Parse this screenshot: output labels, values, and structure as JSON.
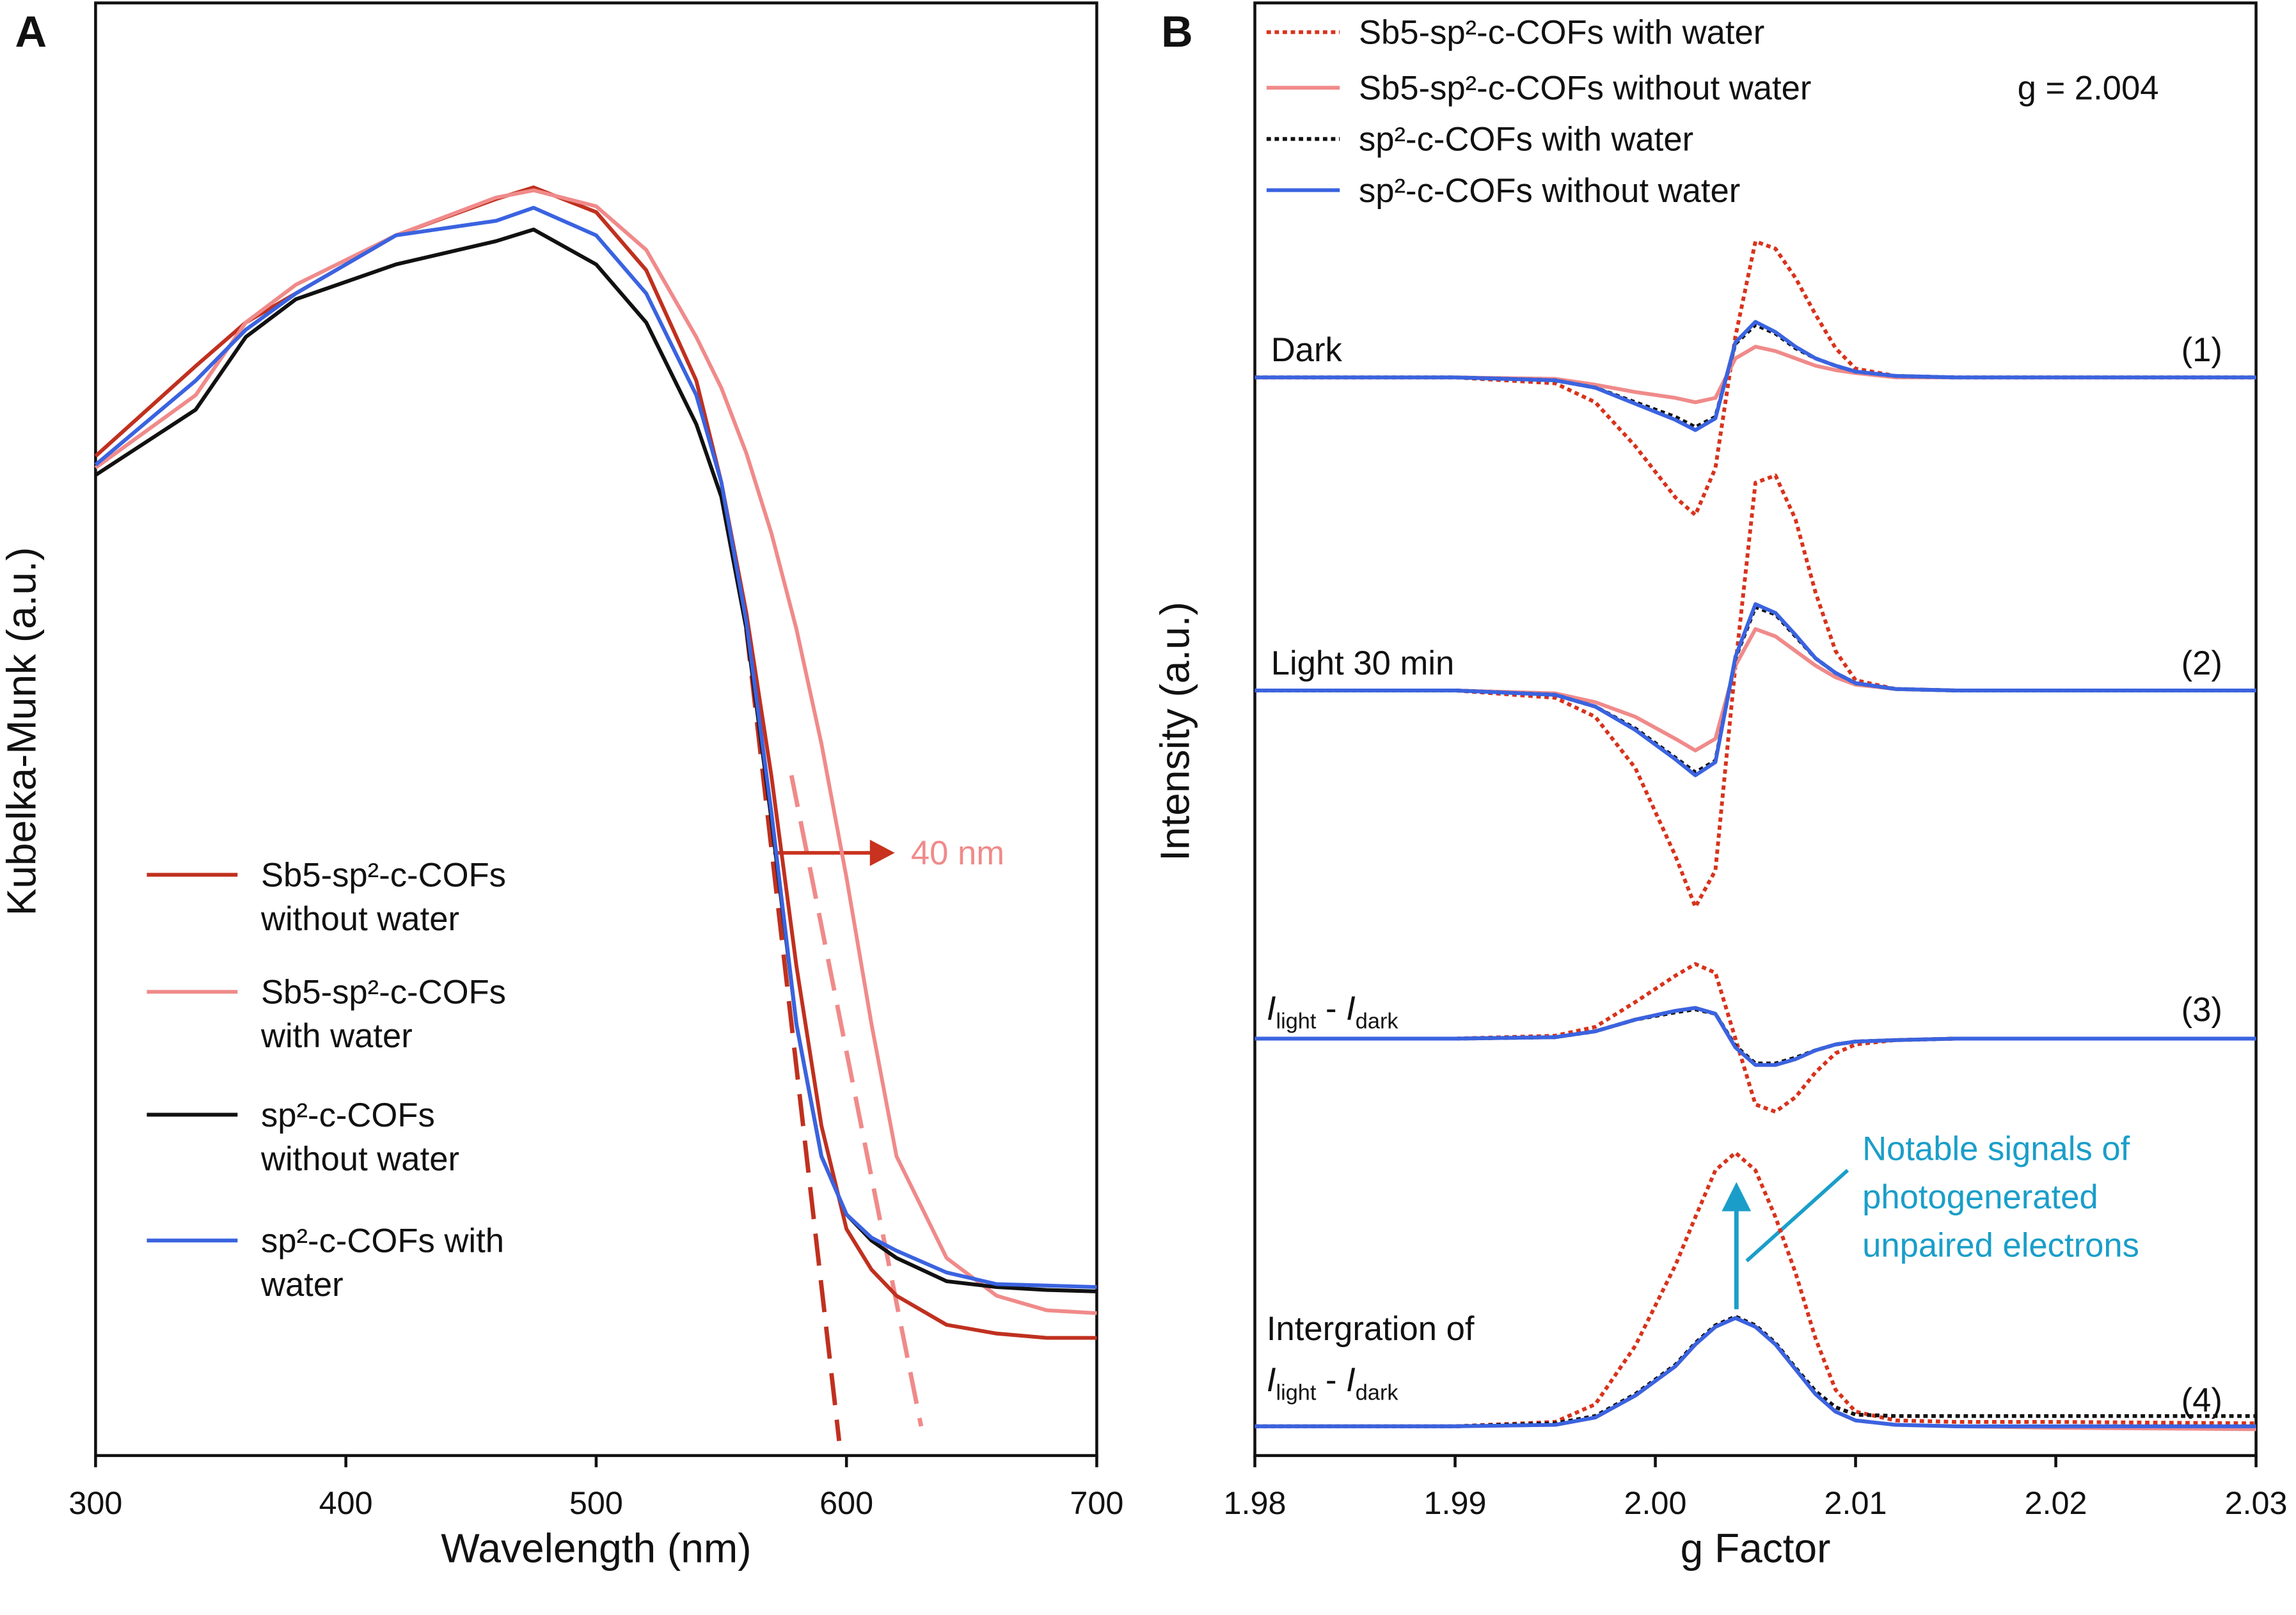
{
  "chart_data": [
    {
      "type": "line",
      "panel": "A",
      "xlabel": "Wavelength (nm)",
      "ylabel": "Kubelka-Munk (a.u.)",
      "xlim": [
        300,
        700
      ],
      "xticks": [
        300,
        400,
        500,
        600,
        700
      ],
      "ylim": [
        0,
        100
      ],
      "x": [
        300,
        340,
        360,
        380,
        420,
        460,
        475,
        500,
        520,
        540,
        550,
        560,
        570,
        580,
        590,
        600,
        610,
        620,
        640,
        660,
        680,
        700
      ],
      "series": [
        {
          "name": "Sb5-sp²-c-COFs without water",
          "color": "#c0301f",
          "values": [
            68.8,
            75,
            78,
            80,
            84,
            86.5,
            87.3,
            85.6,
            81.6,
            74,
            67,
            58,
            46.8,
            33.7,
            22.7,
            15.6,
            12.8,
            11,
            9,
            8.4,
            8.1,
            8.1
          ]
        },
        {
          "name": "Sb5-sp²-c-COFs with water",
          "color": "#f08a8a",
          "values": [
            68,
            73,
            78,
            80.6,
            84,
            86.6,
            87.1,
            86,
            83,
            77,
            73.5,
            69,
            63.5,
            56.9,
            49,
            39.8,
            29.7,
            20.6,
            13.6,
            11,
            10,
            9.8
          ]
        },
        {
          "name": "sp²-c-COFs without water",
          "color": "#111111",
          "values": [
            67.5,
            72,
            77,
            79.6,
            82,
            83.6,
            84.4,
            82,
            78,
            71,
            66,
            56.9,
            43.8,
            29.7,
            20.6,
            16.6,
            14.8,
            13.6,
            12,
            11.6,
            11.4,
            11.3
          ]
        },
        {
          "name": "sp²-c-COFs with water",
          "color": "#3a63e0",
          "values": [
            68.2,
            74,
            77.5,
            80,
            84,
            85,
            85.9,
            84,
            80,
            73,
            67,
            57.4,
            44.3,
            29.7,
            20.6,
            16.6,
            15,
            14.1,
            12.6,
            11.8,
            11.7,
            11.6
          ]
        }
      ],
      "annotation": "40 nm"
    },
    {
      "type": "line",
      "panel": "B",
      "xlabel": "g Factor",
      "ylabel": "Intensity (a.u.)",
      "xlim": [
        1.98,
        2.03
      ],
      "xticks": [
        1.98,
        1.99,
        {
          "value": 2.0,
          "label": "2.00"
        },
        2.01,
        2.02,
        2.03
      ],
      "ylim": [
        0,
        993
      ],
      "x": [
        1.98,
        1.99,
        1.995,
        1.997,
        1.999,
        2.001,
        2.002,
        2.003,
        2.004,
        2.005,
        2.006,
        2.007,
        2.008,
        2.009,
        2.01,
        2.012,
        2.015,
        2.02,
        2.03
      ],
      "series": [
        {
          "name": "Sb5-sp²-c-COFs with water",
          "color": "#d8331c",
          "dotted": true
        },
        {
          "name": "Sb5-sp²-c-COFs without water",
          "color": "#f08a8a",
          "dotted": false
        },
        {
          "name": "sp²-c-COFs with water",
          "color": "#111111",
          "dotted": true
        },
        {
          "name": "sp²-c-COFs without water",
          "color": "#3a63e0",
          "dotted": false
        }
      ],
      "traces": [
        {
          "label": [
            "Dark"
          ],
          "tag": "(1)",
          "values": [
            [
              737,
              737,
              733,
              720,
              690,
              655,
              643,
              675,
              765,
              830,
              825,
              805,
              780,
              757,
              743,
              738,
              737,
              737,
              737
            ],
            [
              737,
              737,
              736,
              732,
              727,
              723,
              720,
              723,
              750,
              758,
              755,
              750,
              745,
              742,
              740,
              737,
              737,
              737,
              737
            ],
            [
              737,
              737,
              735,
              730,
              720,
              710,
              703,
              710,
              760,
              773,
              767,
              757,
              750,
              745,
              741,
              738,
              737,
              737,
              737
            ],
            [
              737,
              737,
              735,
              730,
              719,
              708,
              701,
              709,
              761,
              775,
              768,
              758,
              750,
              745,
              741,
              738,
              737,
              737,
              737
            ]
          ]
        },
        {
          "label": [
            "Light 30 min"
          ],
          "tag": "(2)",
          "values": [
            [
              523,
              523,
              518,
              505,
              470,
              410,
              375,
              400,
              540,
              665,
              670,
              640,
              590,
              550,
              530,
              524,
              523,
              523,
              523
            ],
            [
              523,
              523,
              521,
              515,
              505,
              490,
              482,
              490,
              540,
              565,
              560,
              550,
              540,
              532,
              527,
              524,
              523,
              523,
              523
            ],
            [
              523,
              523,
              520,
              512,
              497,
              477,
              467,
              475,
              545,
              580,
              575,
              560,
              545,
              535,
              528,
              524,
              523,
              523,
              523
            ],
            [
              523,
              523,
              520,
              512,
              496,
              476,
              465,
              474,
              546,
              582,
              576,
              561,
              545,
              535,
              528,
              524,
              523,
              523,
              523
            ]
          ]
        },
        {
          "label": [
            "I",
            "light",
            " - ",
            "I",
            "dark"
          ],
          "tag": "(3)",
          "values": [
            [
              285,
              285,
              287,
              293,
              310,
              328,
              336,
              330,
              285,
              240,
              235,
              245,
              262,
              275,
              281,
              284,
              285,
              285,
              285
            ],
            [
              285,
              285,
              286,
              290,
              298,
              304,
              306,
              302,
              279,
              267,
              267,
              271,
              277,
              281,
              283,
              284,
              285,
              285,
              285
            ],
            [
              285,
              285,
              286,
              290,
              298,
              303,
              305,
              302,
              280,
              268,
              268,
              272,
              277,
              281,
              283,
              284,
              285,
              285,
              285
            ],
            [
              285,
              285,
              286,
              290,
              298,
              304,
              306,
              302,
              279,
              267,
              267,
              271,
              277,
              281,
              283,
              284,
              285,
              285,
              285
            ]
          ]
        },
        {
          "label": [
            "Intergration of",
            "I",
            "light",
            " - ",
            "I",
            "dark"
          ],
          "tag": "(4)",
          "values": [
            [
              20,
              20,
              23,
              35,
              75,
              130,
              163,
              195,
              207,
              195,
              163,
              125,
              80,
              45,
              30,
              24,
              23,
              23,
              22
            ],
            [
              20,
              20,
              21,
              26,
              41,
              61,
              76,
              88,
              94,
              88,
              76,
              59,
              42,
              30,
              24,
              21,
              20,
              19,
              18
            ],
            [
              20,
              20,
              22,
              27,
              42,
              62,
              77,
              89,
              95,
              89,
              77,
              60,
              44,
              33,
              28,
              27,
              27,
              27,
              27
            ],
            [
              20,
              20,
              21,
              26,
              41,
              61,
              76,
              88,
              94,
              88,
              76,
              59,
              42,
              30,
              24,
              21,
              20,
              20,
              20
            ]
          ]
        }
      ],
      "annotation": "g = 2.004",
      "note": [
        "Notable signals of",
        "photogenerated",
        "unpaired electrons"
      ]
    }
  ]
}
